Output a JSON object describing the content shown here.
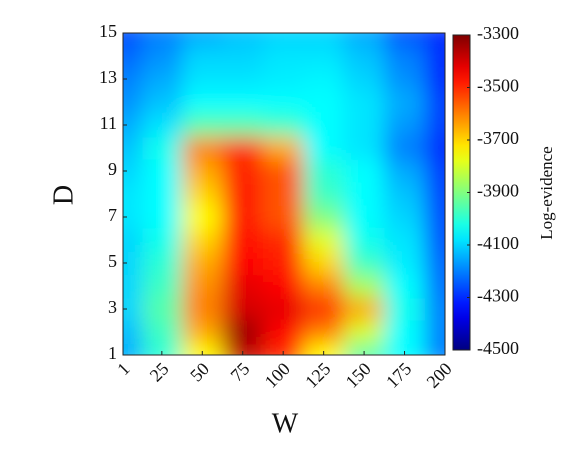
{
  "chart_data": {
    "type": "heatmap",
    "x_label": "W",
    "y_label": "D",
    "colorbar_label": "Log-evidence",
    "colormap": "jet",
    "x": [
      1,
      25,
      50,
      75,
      100,
      125,
      150,
      175,
      200
    ],
    "y": [
      1,
      2,
      3,
      4,
      5,
      6,
      7,
      8,
      9,
      10,
      11,
      12,
      13,
      14,
      15
    ],
    "z": [
      [
        -4150,
        -4000,
        -3750,
        -3380,
        -3500,
        -3750,
        -3950,
        -4050,
        -4200
      ],
      [
        -4130,
        -3980,
        -3650,
        -3330,
        -3450,
        -3600,
        -3800,
        -4050,
        -4200
      ],
      [
        -4100,
        -3950,
        -3600,
        -3400,
        -3420,
        -3500,
        -3650,
        -4030,
        -4200
      ],
      [
        -4100,
        -3980,
        -3620,
        -3420,
        -3450,
        -3600,
        -3850,
        -4050,
        -4220
      ],
      [
        -4100,
        -4000,
        -3650,
        -3450,
        -3480,
        -3700,
        -3980,
        -4070,
        -4230
      ],
      [
        -4100,
        -4030,
        -3700,
        -3470,
        -3500,
        -3780,
        -4030,
        -4080,
        -4250
      ],
      [
        -4080,
        -4050,
        -3750,
        -3480,
        -3550,
        -3900,
        -4050,
        -4100,
        -4260
      ],
      [
        -4080,
        -4050,
        -3700,
        -3480,
        -3550,
        -3980,
        -4050,
        -4120,
        -4270
      ],
      [
        -4100,
        -4050,
        -3650,
        -3490,
        -3550,
        -4000,
        -4050,
        -4150,
        -4280
      ],
      [
        -4120,
        -4030,
        -3600,
        -3500,
        -3650,
        -4050,
        -4080,
        -4200,
        -4300
      ],
      [
        -4150,
        -4080,
        -3950,
        -3950,
        -3980,
        -4050,
        -4080,
        -4170,
        -4280
      ],
      [
        -4180,
        -4120,
        -4050,
        -4050,
        -4050,
        -4050,
        -4080,
        -4150,
        -4280
      ],
      [
        -4200,
        -4150,
        -4080,
        -4080,
        -4070,
        -4060,
        -4100,
        -4180,
        -4300
      ],
      [
        -4230,
        -4180,
        -4100,
        -4100,
        -4080,
        -4080,
        -4120,
        -4200,
        -4300
      ],
      [
        -4260,
        -4200,
        -4150,
        -4120,
        -4100,
        -4100,
        -4150,
        -4250,
        -4300
      ]
    ],
    "xlim": [
      1,
      200
    ],
    "xticks": [
      1,
      25,
      50,
      75,
      100,
      125,
      150,
      175,
      200
    ],
    "ylim": [
      1,
      15
    ],
    "yticks": [
      1,
      3,
      5,
      7,
      9,
      11,
      13,
      15
    ],
    "clim": [
      -4500,
      -3300
    ],
    "cticks": [
      -4500,
      -4300,
      -4100,
      -3900,
      -3700,
      -3500,
      -3300
    ]
  }
}
